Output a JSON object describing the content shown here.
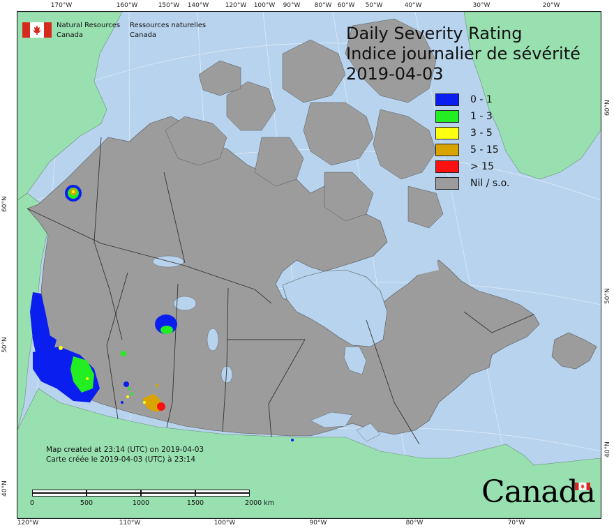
{
  "title": {
    "en": "Daily Severity Rating",
    "fr": "Indice journalier de sévérité",
    "date": "2019-04-03"
  },
  "legend": [
    {
      "label": "0 - 1",
      "color": "#0a1ef0"
    },
    {
      "label": "1 - 3",
      "color": "#22ee22"
    },
    {
      "label": "3 - 5",
      "color": "#ffff10"
    },
    {
      "label": "5 - 15",
      "color": "#d9a300"
    },
    {
      "label": "> 15",
      "color": "#ff1010"
    },
    {
      "label": "Nil / s.o.",
      "color": "#9c9c9c"
    }
  ],
  "agency": {
    "en": [
      "Natural Resources",
      "Canada"
    ],
    "fr": [
      "Ressources naturelles",
      "Canada"
    ]
  },
  "created": {
    "en": "Map created at 23:14 (UTC) on 2019-04-03",
    "fr": "Carte créée le 2019-04-03 (UTC) à 23:14"
  },
  "scalebar": {
    "labels": [
      "0",
      "500",
      "1000",
      "1500",
      "2000 km"
    ]
  },
  "wordmark": "Canada",
  "graticule": {
    "top": [
      "170°W",
      "160°W",
      "150°W",
      "140°W",
      "120°W",
      "100°W",
      "90°W",
      "80°W",
      "60°W",
      "50°W",
      "40°W",
      "30°W",
      "20°W"
    ],
    "bottom": [
      "120°W",
      "110°W",
      "100°W",
      "90°W",
      "80°W",
      "70°W"
    ],
    "left": [
      "60°N",
      "50°N",
      "40°N"
    ],
    "right": [
      "60°N",
      "50°N",
      "40°N"
    ]
  },
  "colors": {
    "water": "#b7d3ee",
    "land_foreign": "#98e0b0",
    "land_canada_nil": "#9c9c9c",
    "boundary": "#333333"
  }
}
